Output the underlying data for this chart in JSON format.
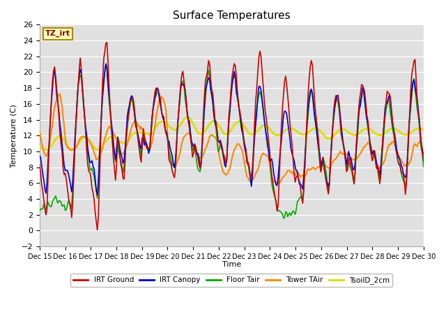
{
  "title": "Surface Temperatures",
  "ylabel": "Temperature (C)",
  "xlabel": "Time",
  "ylim": [
    -2,
    26
  ],
  "annotation_text": "TZ_irt",
  "background_color": "#e0e0e0",
  "legend_entries": [
    "IRT Ground",
    "IRT Canopy",
    "Floor Tair",
    "Tower TAir",
    "TsoilD_2cm"
  ],
  "line_colors": [
    "#cc0000",
    "#0000cc",
    "#00aa00",
    "#ff8800",
    "#dddd00"
  ],
  "line_widths": [
    1.2,
    1.2,
    1.2,
    1.5,
    2.0
  ],
  "x_tick_labels": [
    "Dec 15",
    "Dec 16",
    "Dec 17",
    "Dec 18",
    "Dec 19",
    "Dec 20",
    "Dec 21",
    "Dec 22",
    "Dec 23",
    "Dec 24",
    "Dec 25",
    "Dec 26",
    "Dec 27",
    "Dec 28",
    "Dec 29",
    "Dec 30"
  ],
  "grid_color": "#ffffff",
  "seed": 7,
  "n_days": 15,
  "hours_per_day": 24,
  "peak_hour": 14,
  "trough_hour": 6,
  "day_peaks_red": [
    21,
    21,
    24.5,
    17,
    18,
    20.5,
    21,
    21,
    22.5,
    19.5,
    21.5,
    18,
    19,
    18,
    21,
    20.5
  ],
  "day_troughs_red": [
    1.5,
    1.5,
    -0.5,
    6,
    10,
    6,
    8,
    8,
    6,
    1.5,
    3,
    4,
    6,
    6,
    5,
    8
  ],
  "day_peaks_blue": [
    20,
    20,
    21.5,
    17,
    18,
    19,
    20,
    20,
    18,
    15,
    18,
    17.5,
    18,
    17.5,
    19,
    19
  ],
  "day_troughs_blue": [
    4.5,
    4.5,
    4.5,
    8,
    10,
    8,
    8,
    8,
    6,
    5,
    5,
    5,
    7,
    7,
    6,
    9
  ],
  "day_peaks_green": [
    4,
    20,
    21,
    17,
    18,
    19,
    20,
    20,
    18,
    2,
    18,
    17,
    18,
    17,
    19,
    19
  ],
  "day_troughs_green": [
    3,
    3,
    4,
    7,
    10,
    7,
    7,
    8,
    6,
    2,
    4,
    5,
    6,
    6,
    5,
    8
  ],
  "day_peaks_orange": [
    17,
    12,
    13,
    14,
    17,
    12.5,
    12,
    11,
    10,
    7.5,
    8,
    10,
    11,
    11,
    11,
    17
  ],
  "day_troughs_orange": [
    9.5,
    10,
    9,
    10,
    10,
    8,
    9,
    7,
    6,
    6,
    7,
    8,
    9,
    8,
    8,
    10
  ],
  "day_peaks_yellow": [
    12,
    12,
    12,
    12.5,
    14,
    14.5,
    14,
    14,
    13.5,
    13,
    13,
    13,
    13,
    13,
    13,
    13
  ],
  "day_troughs_yellow": [
    10,
    10,
    10,
    11,
    12,
    12.5,
    12,
    12,
    12,
    12,
    12,
    11.5,
    12,
    12,
    12,
    12
  ]
}
